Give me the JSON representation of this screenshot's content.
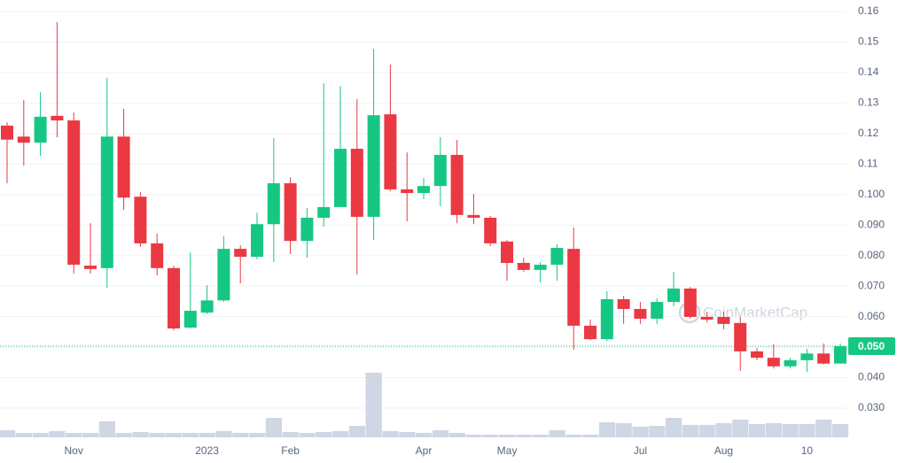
{
  "chart_data": {
    "type": "candlestick",
    "categories": [
      null,
      null,
      null,
      null,
      "Nov",
      null,
      null,
      null,
      null,
      null,
      null,
      null,
      "2023",
      null,
      null,
      null,
      null,
      "Feb",
      null,
      null,
      null,
      null,
      null,
      null,
      null,
      "Apr",
      null,
      null,
      null,
      null,
      "May",
      null,
      null,
      null,
      null,
      null,
      null,
      null,
      "Jul",
      null,
      null,
      null,
      null,
      "Aug",
      null,
      null,
      null,
      null,
      "10",
      null,
      null
    ],
    "open": [
      0.1226,
      0.119,
      0.117,
      0.1258,
      0.1243,
      0.0767,
      0.0759,
      0.119,
      0.0993,
      0.084,
      0.0759,
      0.0564,
      0.0613,
      0.0653,
      0.0822,
      0.0796,
      0.0903,
      0.1037,
      0.0848,
      0.0924,
      0.0959,
      0.115,
      0.0927,
      0.1263,
      0.1017,
      0.1005,
      0.1028,
      0.113,
      0.0933,
      0.0924,
      0.0846,
      0.0776,
      0.0753,
      0.077,
      0.0822,
      0.057,
      0.0526,
      0.0657,
      0.0625,
      0.0593,
      0.0648,
      0.0692,
      0.0599,
      0.0599,
      0.0579,
      0.0486,
      0.0465,
      0.0437,
      0.0457,
      0.0479,
      0.0446
    ],
    "high": [
      0.1237,
      0.131,
      0.1336,
      0.1565,
      0.1269,
      0.0906,
      0.1382,
      0.1281,
      0.1008,
      0.0872,
      0.0767,
      0.081,
      0.0703,
      0.0863,
      0.0834,
      0.0941,
      0.1185,
      0.1057,
      0.0956,
      0.1365,
      0.1356,
      0.1313,
      0.1478,
      0.1426,
      0.1138,
      0.1054,
      0.1188,
      0.1179,
      0.1002,
      0.093,
      0.0851,
      0.0793,
      0.0779,
      0.0837,
      0.0892,
      0.059,
      0.0683,
      0.0668,
      0.0648,
      0.066,
      0.0747,
      0.0697,
      0.0616,
      0.0616,
      0.06,
      0.0497,
      0.0509,
      0.0465,
      0.0494,
      0.0512,
      0.0512
    ],
    "low": [
      0.1037,
      0.1095,
      0.1127,
      0.1188,
      0.0741,
      0.0741,
      0.0695,
      0.095,
      0.0828,
      0.0735,
      0.0555,
      0.0561,
      0.0608,
      0.0648,
      0.0709,
      0.0787,
      0.0779,
      0.0805,
      0.0793,
      0.0895,
      0.0959,
      0.0738,
      0.0851,
      0.1011,
      0.0912,
      0.0985,
      0.0962,
      0.0906,
      0.0903,
      0.0831,
      0.0718,
      0.0747,
      0.0712,
      0.0718,
      0.0491,
      0.0523,
      0.052,
      0.0576,
      0.0576,
      0.0576,
      0.0634,
      0.0593,
      0.0581,
      0.0558,
      0.0422,
      0.0457,
      0.043,
      0.043,
      0.0419,
      0.0443,
      0.0446
    ],
    "close": [
      0.118,
      0.117,
      0.1255,
      0.1243,
      0.077,
      0.0756,
      0.119,
      0.099,
      0.084,
      0.0759,
      0.0561,
      0.0619,
      0.0653,
      0.0822,
      0.0796,
      0.0903,
      0.1037,
      0.0848,
      0.0924,
      0.0959,
      0.115,
      0.0927,
      0.126,
      0.1017,
      0.1005,
      0.1028,
      0.113,
      0.0933,
      0.0924,
      0.084,
      0.0776,
      0.0753,
      0.077,
      0.0825,
      0.057,
      0.0526,
      0.0657,
      0.0625,
      0.0593,
      0.0648,
      0.0692,
      0.0599,
      0.059,
      0.0576,
      0.0486,
      0.0465,
      0.0437,
      0.0457,
      0.0479,
      0.0446,
      0.0503
    ],
    "volume": [
      8,
      5,
      5,
      7,
      5,
      5,
      18,
      5,
      6,
      5,
      5,
      5,
      5,
      7,
      5,
      5,
      22,
      6,
      5,
      6,
      7,
      13,
      73,
      7,
      6,
      5,
      8,
      5,
      3,
      3,
      3,
      3,
      3,
      8,
      3,
      3,
      17,
      16,
      12,
      13,
      22,
      14,
      14,
      16,
      20,
      15,
      16,
      15,
      15,
      20,
      15
    ],
    "up_color": "#16c784",
    "down_color": "#ea3943",
    "volume_color": "#cfd6e4",
    "ylim": [
      0.03,
      0.16
    ],
    "yticks": [
      0.16,
      0.15,
      0.14,
      0.13,
      0.12,
      0.11,
      {
        "value": 0.1,
        "label": "0.100"
      },
      {
        "value": 0.09,
        "label": "0.090"
      },
      {
        "value": 0.08,
        "label": "0.080"
      },
      {
        "value": 0.07,
        "label": "0.070"
      },
      {
        "value": 0.06,
        "label": "0.060"
      },
      {
        "value": 0.05,
        "label": "0.050"
      },
      {
        "value": 0.04,
        "label": "0.040"
      },
      {
        "value": 0.03,
        "label": "0.030"
      }
    ],
    "grid": true,
    "last_price": {
      "value": 0.0503,
      "label": "0.050"
    },
    "watermark": "CoinMarketCap"
  }
}
